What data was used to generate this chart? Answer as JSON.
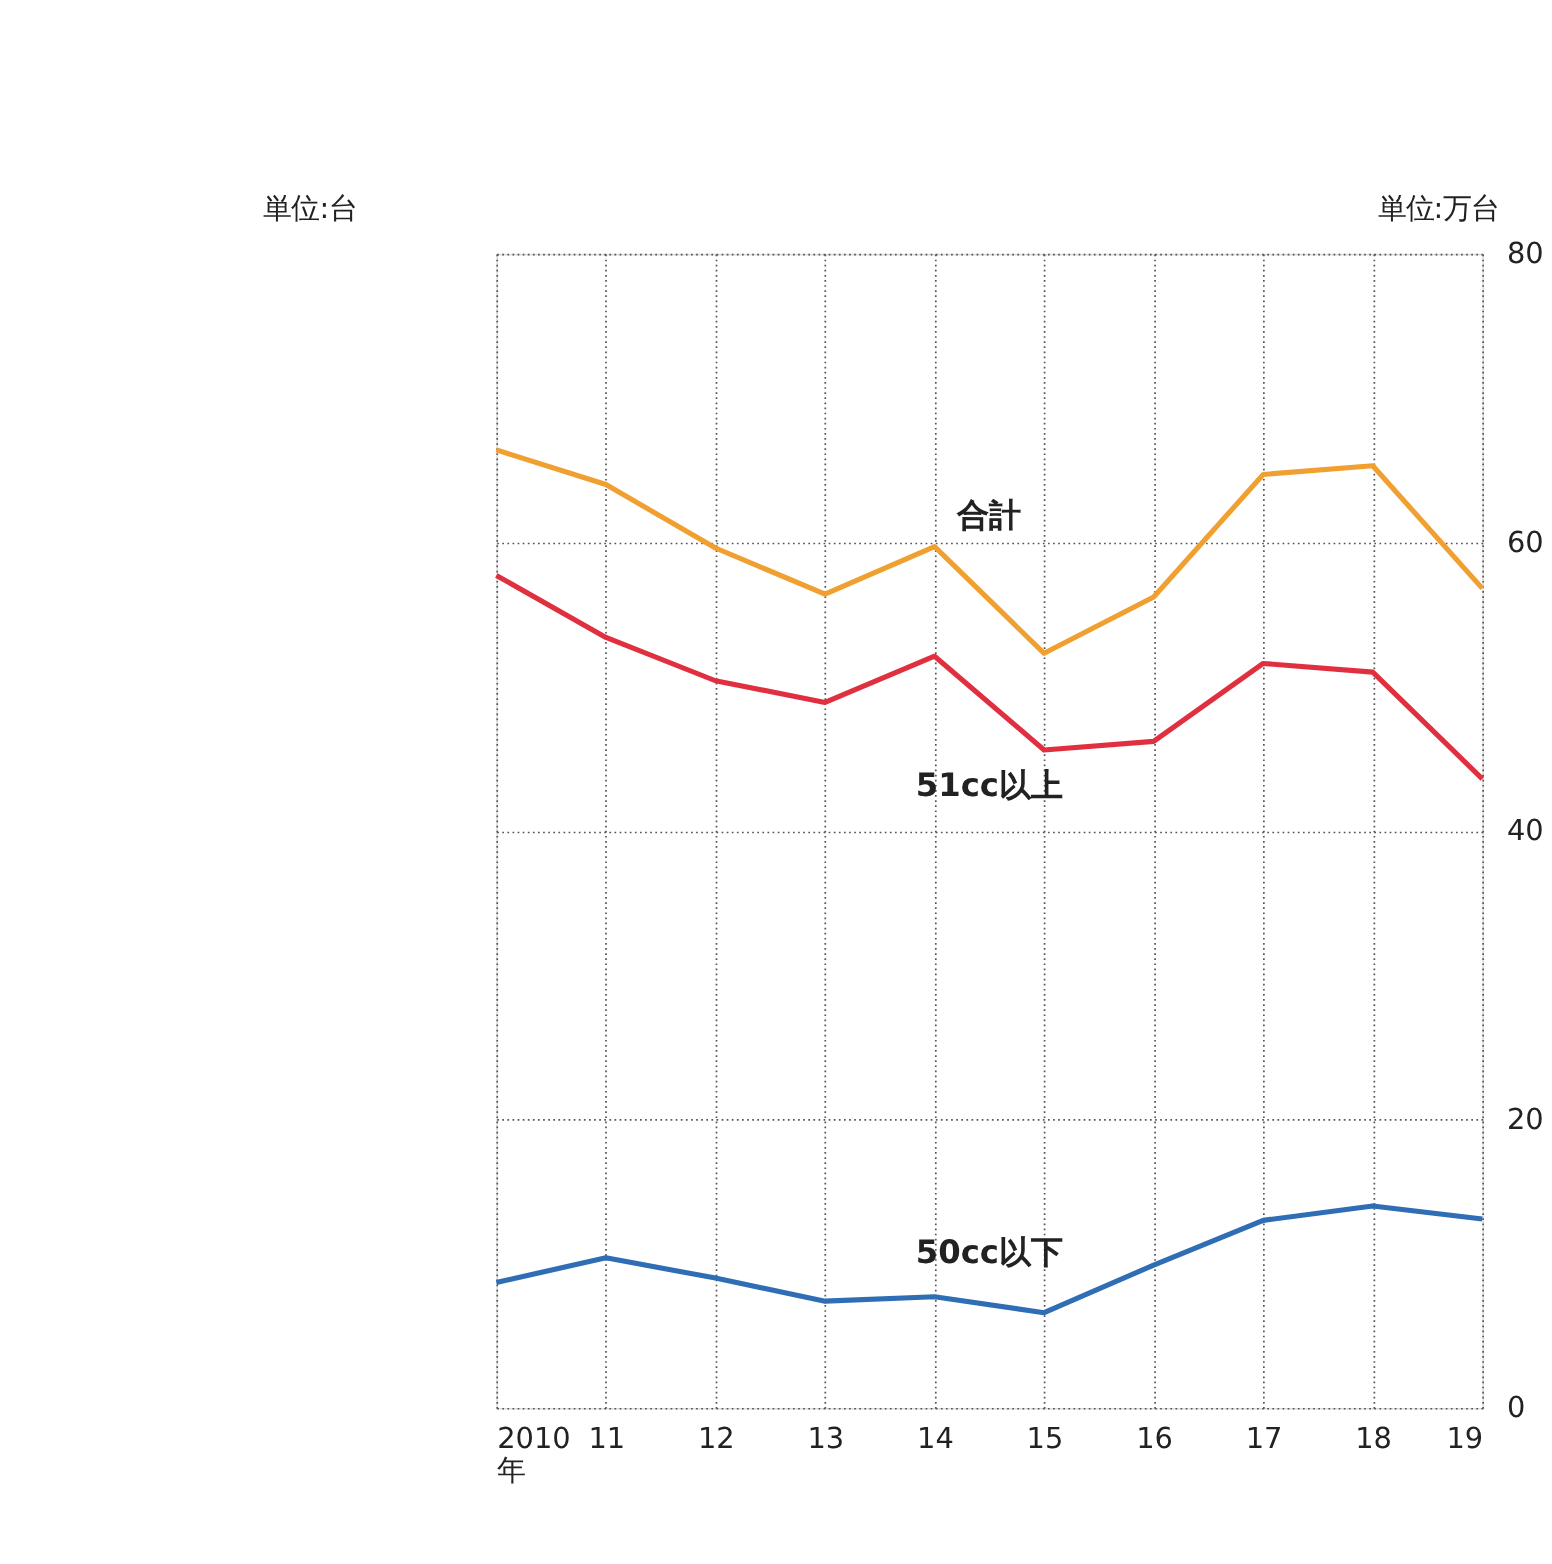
{
  "chart_data": {
    "type": "line",
    "ylabel": "単位:万台",
    "annotations": [
      "単位:台"
    ],
    "categories": [
      "2010年",
      "11",
      "12",
      "13",
      "14",
      "15",
      "16",
      "17",
      "18",
      "19"
    ],
    "series": [
      {
        "name": "合計",
        "color": "#f0a030",
        "values": [
          66.4,
          64.0,
          59.6,
          56.4,
          59.7,
          52.3,
          56.2,
          64.7,
          65.3,
          56.8
        ]
      },
      {
        "name": "51cc以上",
        "color": "#e03040",
        "values": [
          57.7,
          53.4,
          50.4,
          48.9,
          52.1,
          45.6,
          46.2,
          51.6,
          51.0,
          43.6
        ]
      },
      {
        "name": "50cc以下",
        "color": "#2f6db5",
        "values": [
          8.7,
          10.4,
          9.0,
          7.4,
          7.7,
          6.6,
          9.9,
          13.0,
          14.0,
          13.1
        ]
      }
    ],
    "ylim": [
      0,
      80
    ],
    "yticks": [
      0,
      20,
      40,
      60,
      80
    ],
    "grid": true,
    "legend": false,
    "marker": "none",
    "line_style": "solid"
  }
}
